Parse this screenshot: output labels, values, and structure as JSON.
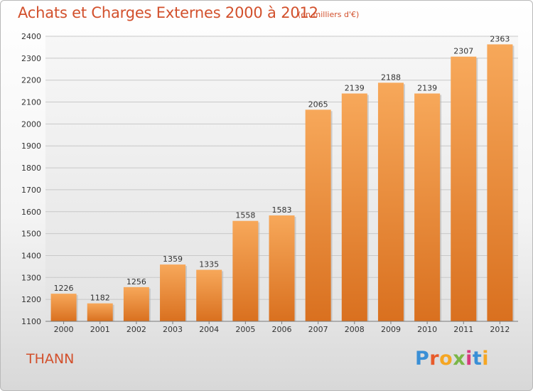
{
  "header": {
    "title": "Achats et Charges Externes 2000 à 2012",
    "subtitle": "(en milliers d'€)"
  },
  "footer": {
    "city": "THANN",
    "logo_text": "Proxiti",
    "logo_colors": [
      "#3a8fd6",
      "#e85b2a",
      "#f5a623",
      "#7ab648",
      "#d83a7c",
      "#3a8fd6",
      "#f5a623"
    ]
  },
  "chart_data": {
    "type": "bar",
    "title": "Achats et Charges Externes 2000 à 2012",
    "subtitle": "(en milliers d'€)",
    "categories": [
      "2000",
      "2001",
      "2002",
      "2003",
      "2004",
      "2005",
      "2006",
      "2007",
      "2008",
      "2009",
      "2010",
      "2011",
      "2012"
    ],
    "values": [
      1226,
      1182,
      1256,
      1359,
      1335,
      1558,
      1583,
      2065,
      2139,
      2188,
      2139,
      2307,
      2363
    ],
    "ylim": [
      1100,
      2400
    ],
    "yticks": [
      1100,
      1200,
      1300,
      1400,
      1500,
      1600,
      1700,
      1800,
      1900,
      2000,
      2100,
      2200,
      2300,
      2400
    ],
    "grid": true,
    "bar_color": "#f0913a",
    "xlabel": "",
    "ylabel": ""
  }
}
